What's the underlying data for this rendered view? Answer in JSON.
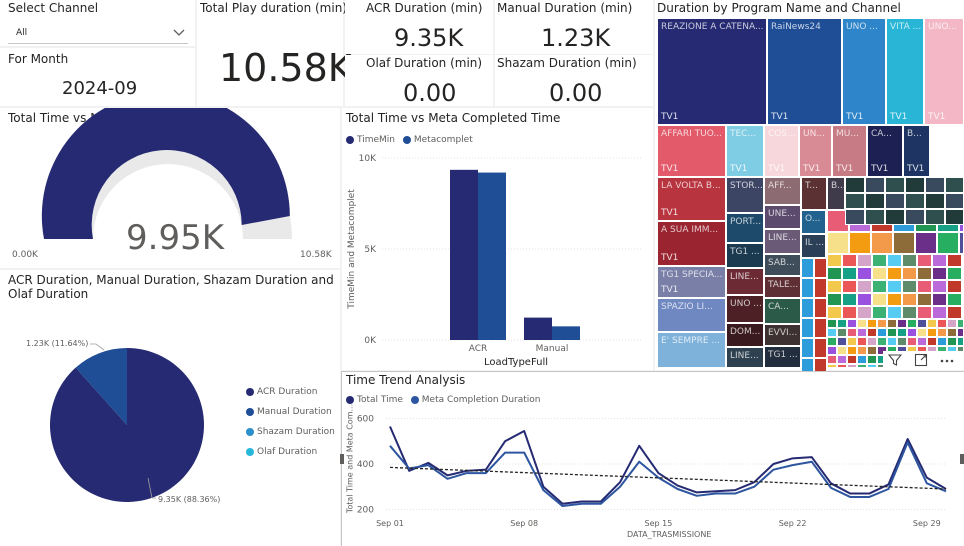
{
  "slicer": {
    "title": "Select Channel",
    "selected": "All"
  },
  "month": {
    "label": "For Month",
    "value": "2024-09"
  },
  "kpis": {
    "total": {
      "label": "Total Play duration (min))",
      "value": "10.58K"
    },
    "acr": {
      "label": "ACR Duration (min)",
      "value": "9.35K"
    },
    "manual": {
      "label": "Manual Duration (min)",
      "value": "1.23K"
    },
    "olaf": {
      "label": "Olaf Duration (min)",
      "value": "0.00"
    },
    "shazam": {
      "label": "Shazam Duration (min)",
      "value": "0.00"
    }
  },
  "gauge": {
    "title": "Total Time vs Meta Completed Time",
    "value_label": "9.95K",
    "min_label": "0.00K",
    "max_label": "10.58K",
    "value": 9950,
    "min": 0,
    "max": 10580,
    "fill_color": "#252a72",
    "track_color": "#e9e9e9"
  },
  "pie": {
    "title": "ACR Duration, Manual Duration, Shazam Duration and Olaf Duration",
    "slices": [
      {
        "name": "ACR Duration",
        "value": 9350,
        "label": "9.35K (88.36%)",
        "color": "#252a72"
      },
      {
        "name": "Manual Duration",
        "value": 1230,
        "label": "1.23K (11.64%)",
        "color": "#1f4e96"
      },
      {
        "name": "Shazam Duration",
        "value": 0,
        "label": "",
        "color": "#2b8fc9"
      },
      {
        "name": "Olaf Duration",
        "value": 0,
        "label": "",
        "color": "#26b6d8"
      }
    ]
  },
  "bar": {
    "title": "Total Time vs Meta Completed Time",
    "legend": [
      "TimeMin",
      "Metacomplet"
    ],
    "colors": [
      "#252a72",
      "#1f4e96"
    ],
    "ylabel": "TimeMin and Metacomplet",
    "xlabel": "LoadTypeFull",
    "yticks": [
      "0K",
      "5K",
      "10K"
    ],
    "ylim": [
      0,
      10000
    ],
    "categories": [
      "ACR",
      "Manual"
    ],
    "series": [
      {
        "values": [
          9350,
          1230
        ]
      },
      {
        "values": [
          9200,
          750
        ]
      }
    ]
  },
  "treemap": {
    "title": "Duration by Program Name and Channel",
    "big": [
      {
        "name": "REAZIONE A CATENA...",
        "channel": "TV1",
        "color": "#252a72"
      },
      {
        "name": "RaiNews24",
        "channel": "TV1",
        "color": "#1f4e96"
      },
      {
        "name": "UNO ...",
        "channel": "TV1",
        "color": "#2f85c9"
      },
      {
        "name": "VITA ...",
        "channel": "TV1",
        "color": "#29b6d6"
      },
      {
        "name": "UNO...",
        "channel": "TV1",
        "color": "#f3b7c6"
      },
      {
        "name": "AFFARI TUO...",
        "channel": "TV1",
        "color": "#e35b6a"
      },
      {
        "name": "TEC...",
        "channel": "TV1",
        "color": "#7fcde4"
      },
      {
        "name": "COS...",
        "channel": "TV1",
        "color": "#f7d6dc"
      },
      {
        "name": "UN...",
        "channel": "TV1",
        "color": "#d98b95"
      },
      {
        "name": "MU...",
        "channel": "TV1",
        "color": "#c77b84"
      },
      {
        "name": "CA...",
        "channel": "TV1",
        "color": "#1d2052"
      },
      {
        "name": "B...",
        "channel": "TV1",
        "color": "#1e3462"
      },
      {
        "name": "LA VOLTA B...",
        "channel": "TV1",
        "color": "#b8343f"
      },
      {
        "name": "A SUA IMM...",
        "channel": "TV1",
        "color": "#9a2430"
      },
      {
        "name": "TG1 SPECIA...",
        "channel": "TV1",
        "color": "#7a7fa8"
      },
      {
        "name": "SPAZIO LI...",
        "channel": "",
        "color": "#6f88c1"
      },
      {
        "name": "E' SEMPRE ...",
        "channel": "",
        "color": "#7fb2da"
      },
      {
        "name": "STOR...",
        "channel": "",
        "color": "#3d4565"
      },
      {
        "name": "PORT...",
        "channel": "",
        "color": "#1d4a6b"
      },
      {
        "name": "TG1 ...",
        "channel": "",
        "color": "#1c3a4f"
      },
      {
        "name": "LINE...",
        "channel": "",
        "color": "#6b2a34"
      },
      {
        "name": "UNO ...",
        "channel": "",
        "color": "#4c2025"
      },
      {
        "name": "DOM...",
        "channel": "",
        "color": "#3a1a1f"
      },
      {
        "name": "LINE...",
        "channel": "",
        "color": "#2e4150"
      },
      {
        "name": "AFF...",
        "channel": "",
        "color": "#8c6b72"
      },
      {
        "name": "UNE...",
        "channel": "",
        "color": "#5d4b6e"
      },
      {
        "name": "LINE...",
        "channel": "",
        "color": "#6a5a78"
      },
      {
        "name": "SAB...",
        "channel": "",
        "color": "#3f4c5a"
      },
      {
        "name": "TALE...",
        "channel": "",
        "color": "#5e3036"
      },
      {
        "name": "CA...",
        "channel": "",
        "color": "#2c5a48"
      },
      {
        "name": "EVVI...",
        "channel": "",
        "color": "#3e3131"
      },
      {
        "name": "TG1 ...",
        "channel": "",
        "color": "#222d3e"
      },
      {
        "name": "T...",
        "channel": "",
        "color": "#5b3134"
      },
      {
        "name": "B...",
        "channel": "",
        "color": "#403b4a"
      },
      {
        "name": "O...",
        "channel": "",
        "color": "#21638e"
      },
      {
        "name": "IL ...",
        "channel": "",
        "color": "#2b3f57"
      }
    ]
  },
  "trend": {
    "title": "Time Trend Analysis",
    "legend": [
      "Total Time",
      "Meta Completion Duration"
    ],
    "colors": [
      "#252a72",
      "#2d55a0"
    ],
    "ylabel": "Total Time and Meta Com...",
    "xlabel": "DATA_TRASMISSIONE",
    "yticks": [
      "200",
      "400",
      "600"
    ],
    "ylim": [
      180,
      620
    ],
    "xticks": [
      "Sep 01",
      "Sep 08",
      "Sep 15",
      "Sep 22",
      "Sep 29"
    ],
    "x": [
      "Sep 01",
      "Sep 02",
      "Sep 03",
      "Sep 04",
      "Sep 05",
      "Sep 06",
      "Sep 07",
      "Sep 08",
      "Sep 09",
      "Sep 10",
      "Sep 11",
      "Sep 12",
      "Sep 13",
      "Sep 14",
      "Sep 15",
      "Sep 16",
      "Sep 17",
      "Sep 18",
      "Sep 19",
      "Sep 20",
      "Sep 21",
      "Sep 22",
      "Sep 23",
      "Sep 24",
      "Sep 25",
      "Sep 26",
      "Sep 27",
      "Sep 28",
      "Sep 29",
      "Sep 30"
    ],
    "series": [
      {
        "values": [
          565,
          370,
          405,
          350,
          370,
          375,
          500,
          545,
          300,
          225,
          235,
          235,
          320,
          480,
          360,
          305,
          275,
          280,
          285,
          320,
          400,
          425,
          430,
          315,
          270,
          270,
          310,
          510,
          340,
          290
        ]
      },
      {
        "values": [
          480,
          380,
          395,
          335,
          360,
          360,
          450,
          450,
          285,
          215,
          225,
          225,
          300,
          410,
          340,
          290,
          260,
          270,
          270,
          300,
          375,
          395,
          410,
          295,
          255,
          255,
          290,
          495,
          315,
          280
        ]
      }
    ],
    "trendline": [
      385,
      290
    ]
  }
}
